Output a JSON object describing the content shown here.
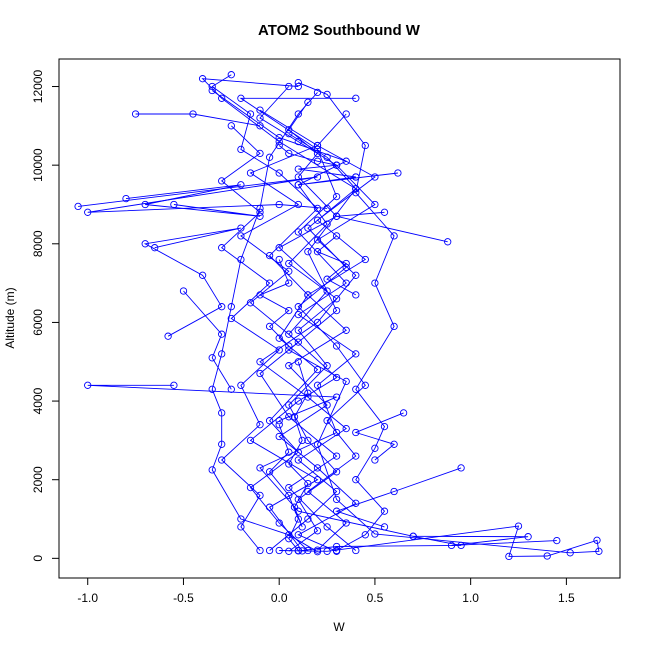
{
  "chart_data": {
    "type": "line",
    "title": "ATOM2 Southbound W",
    "xlabel": "W",
    "ylabel": "Altitude (m)",
    "xlim": [
      -1.15,
      1.78
    ],
    "ylim": [
      -500,
      12700
    ],
    "xticks": [
      "-1.0",
      "-0.5",
      "0.0",
      "0.5",
      "1.0",
      "1.5"
    ],
    "xtick_values": [
      -1.0,
      -0.5,
      0.0,
      0.5,
      1.0,
      1.5
    ],
    "yticks": [
      "0",
      "2000",
      "4000",
      "6000",
      "8000",
      "10000",
      "12000"
    ],
    "ytick_values": [
      0,
      2000,
      4000,
      6000,
      8000,
      10000,
      12000
    ],
    "marker": "open-circle",
    "color": "#0000ff",
    "grid": false,
    "series": [
      {
        "points": [
          [
            0.0,
            200
          ],
          [
            0.25,
            180
          ],
          [
            1.25,
            820
          ],
          [
            1.2,
            50
          ],
          [
            1.4,
            60
          ],
          [
            1.66,
            460
          ],
          [
            1.67,
            180
          ],
          [
            1.52,
            140
          ],
          [
            0.5,
            620
          ],
          [
            0.3,
            1500
          ],
          [
            0.2,
            2900
          ],
          [
            0.35,
            4500
          ],
          [
            0.05,
            5300
          ],
          [
            0.3,
            6300
          ],
          [
            0.15,
            7800
          ],
          [
            0.4,
            9400
          ],
          [
            0.0,
            10600
          ],
          [
            -0.3,
            11700
          ],
          [
            -0.4,
            12200
          ],
          [
            0.1,
            12000
          ]
        ]
      },
      {
        "points": [
          [
            0.1,
            190
          ],
          [
            0.3,
            300
          ],
          [
            0.95,
            330
          ],
          [
            0.7,
            560
          ],
          [
            0.1,
            1200
          ],
          [
            -0.1,
            2300
          ],
          [
            0.3,
            3200
          ],
          [
            0.2,
            4400
          ],
          [
            0.4,
            5200
          ],
          [
            0.1,
            6200
          ],
          [
            0.35,
            7000
          ],
          [
            0.1,
            8300
          ],
          [
            0.3,
            9200
          ],
          [
            0.2,
            10400
          ],
          [
            -0.2,
            11700
          ],
          [
            0.4,
            11700
          ]
        ]
      },
      {
        "points": [
          [
            0.2,
            170
          ],
          [
            0.05,
            600
          ],
          [
            -0.2,
            1000
          ],
          [
            -0.35,
            2250
          ],
          [
            -0.3,
            2900
          ],
          [
            -0.3,
            3700
          ],
          [
            -0.35,
            4300
          ],
          [
            -0.3,
            5200
          ],
          [
            -0.25,
            6400
          ],
          [
            -0.2,
            7600
          ],
          [
            -0.1,
            8900
          ],
          [
            -0.05,
            10200
          ],
          [
            0.1,
            11300
          ],
          [
            0.2,
            11850
          ]
        ]
      },
      {
        "points": [
          [
            0.3,
            200
          ],
          [
            0.45,
            600
          ],
          [
            0.55,
            1200
          ],
          [
            0.4,
            2000
          ],
          [
            0.5,
            2800
          ],
          [
            0.55,
            3350
          ],
          [
            0.4,
            4300
          ],
          [
            0.6,
            5900
          ],
          [
            0.5,
            7000
          ],
          [
            0.6,
            8200
          ],
          [
            0.4,
            9300
          ],
          [
            0.45,
            10500
          ],
          [
            0.25,
            11800
          ],
          [
            0.1,
            12100
          ]
        ]
      },
      {
        "points": [
          [
            0.15,
            200
          ],
          [
            0.0,
            900
          ],
          [
            -0.15,
            1800
          ],
          [
            0.1,
            2700
          ],
          [
            -0.05,
            3500
          ],
          [
            0.2,
            4800
          ],
          [
            0.0,
            5600
          ],
          [
            0.15,
            6700
          ],
          [
            -0.05,
            7700
          ],
          [
            0.2,
            8900
          ],
          [
            0.0,
            9800
          ],
          [
            -0.2,
            10400
          ],
          [
            -0.15,
            11300
          ],
          [
            -0.35,
            12000
          ],
          [
            -0.25,
            12300
          ]
        ]
      },
      {
        "points": [
          [
            0.05,
            180
          ],
          [
            0.2,
            700
          ],
          [
            0.1,
            1500
          ],
          [
            0.3,
            2200
          ],
          [
            0.15,
            3000
          ],
          [
            0.05,
            3900
          ],
          [
            0.25,
            4900
          ],
          [
            0.1,
            5800
          ],
          [
            0.3,
            6600
          ],
          [
            0.05,
            7500
          ],
          [
            0.25,
            8500
          ],
          [
            0.1,
            9500
          ],
          [
            0.35,
            10100
          ],
          [
            0.0,
            10700
          ],
          [
            -0.35,
            11900
          ]
        ]
      },
      {
        "points": [
          [
            -0.05,
            200
          ],
          [
            0.15,
            1000
          ],
          [
            0.3,
            1700
          ],
          [
            0.1,
            2500
          ],
          [
            0.35,
            3300
          ],
          [
            0.15,
            4100
          ],
          [
            -0.1,
            5000
          ],
          [
            0.2,
            6000
          ],
          [
            0.4,
            7200
          ],
          [
            0.2,
            8100
          ],
          [
            0.5,
            9000
          ],
          [
            0.3,
            10000
          ],
          [
            0.1,
            10600
          ],
          [
            -0.1,
            11200
          ],
          [
            0.05,
            12000
          ]
        ]
      },
      {
        "points": [
          [
            0.4,
            200
          ],
          [
            0.25,
            800
          ],
          [
            0.05,
            1800
          ],
          [
            0.3,
            2600
          ],
          [
            0.05,
            3600
          ],
          [
            -0.1,
            4700
          ],
          [
            0.1,
            5500
          ],
          [
            -0.15,
            6500
          ],
          [
            0.05,
            7300
          ],
          [
            -0.2,
            8200
          ],
          [
            0.1,
            9000
          ],
          [
            -0.15,
            9800
          ],
          [
            0.2,
            10500
          ],
          [
            0.35,
            11300
          ]
        ]
      },
      {
        "points": [
          [
            0.12,
            190
          ],
          [
            -0.05,
            1300
          ],
          [
            0.2,
            2000
          ],
          [
            -0.15,
            3000
          ],
          [
            0.1,
            4000
          ],
          [
            0.3,
            4600
          ],
          [
            0.05,
            5700
          ],
          [
            0.25,
            6800
          ],
          [
            0.0,
            7900
          ],
          [
            0.3,
            8700
          ],
          [
            0.1,
            9700
          ],
          [
            0.2,
            10300
          ],
          [
            0.05,
            10900
          ],
          [
            0.15,
            11600
          ]
        ]
      },
      {
        "points": [
          [
            0.3,
            180
          ],
          [
            0.1,
            600
          ],
          [
            0.4,
            1400
          ],
          [
            0.2,
            2300
          ],
          [
            0.0,
            3100
          ],
          [
            0.25,
            3900
          ],
          [
            0.05,
            4900
          ],
          [
            0.35,
            5800
          ],
          [
            0.15,
            6700
          ],
          [
            0.45,
            7600
          ],
          [
            0.2,
            8600
          ],
          [
            0.5,
            9700
          ],
          [
            0.2,
            10500
          ],
          [
            -0.1,
            11400
          ]
        ]
      },
      {
        "points": [
          [
            -0.1,
            200
          ],
          [
            -0.2,
            800
          ],
          [
            -0.1,
            1600
          ],
          [
            -0.3,
            2500
          ],
          [
            -0.1,
            3400
          ],
          [
            -0.2,
            4400
          ],
          [
            0.0,
            5300
          ],
          [
            -0.25,
            6100
          ],
          [
            -0.05,
            7000
          ],
          [
            -0.3,
            7900
          ],
          [
            -0.1,
            8800
          ],
          [
            -0.3,
            9600
          ],
          [
            -0.1,
            10300
          ],
          [
            -0.25,
            11000
          ]
        ]
      },
      {
        "points": [
          [
            0.2,
            210
          ],
          [
            0.35,
            900
          ],
          [
            0.15,
            1700
          ],
          [
            0.4,
            2600
          ],
          [
            0.25,
            3500
          ],
          [
            0.45,
            4400
          ],
          [
            0.3,
            5400
          ],
          [
            0.1,
            6400
          ],
          [
            0.35,
            7400
          ],
          [
            0.15,
            8400
          ],
          [
            0.4,
            9400
          ],
          [
            0.25,
            10200
          ],
          [
            0.05,
            10800
          ]
        ]
      },
      {
        "points": [
          [
            -0.55,
            4400
          ],
          [
            -1.0,
            4400
          ],
          [
            0.3,
            4100
          ],
          [
            0.0,
            3500
          ]
        ]
      },
      {
        "points": [
          [
            -1.05,
            8950
          ],
          [
            0.2,
            9700
          ],
          [
            -1.0,
            8800
          ],
          [
            0.0,
            9000
          ],
          [
            0.25,
            8900
          ]
        ]
      },
      {
        "points": [
          [
            -0.75,
            11300
          ],
          [
            -0.45,
            11300
          ],
          [
            -0.1,
            11000
          ]
        ]
      },
      {
        "points": [
          [
            0.88,
            8050
          ],
          [
            0.3,
            8700
          ],
          [
            0.55,
            8800
          ]
        ]
      },
      {
        "points": [
          [
            0.62,
            9800
          ],
          [
            0.1,
            9500
          ],
          [
            0.4,
            9700
          ]
        ]
      },
      {
        "points": [
          [
            -0.58,
            5650
          ],
          [
            -0.3,
            6400
          ],
          [
            -0.4,
            7200
          ],
          [
            -0.7,
            8000
          ],
          [
            -0.2,
            8400
          ],
          [
            -0.65,
            7900
          ]
        ]
      },
      {
        "points": [
          [
            -0.8,
            9150
          ],
          [
            -0.2,
            9500
          ],
          [
            -0.7,
            9000
          ],
          [
            -0.1,
            8700
          ],
          [
            -0.55,
            9000
          ]
        ]
      },
      {
        "points": [
          [
            0.95,
            2300
          ],
          [
            0.6,
            1700
          ],
          [
            0.3,
            1200
          ],
          [
            0.55,
            800
          ]
        ]
      },
      {
        "points": [
          [
            1.45,
            450
          ],
          [
            0.9,
            330
          ],
          [
            1.3,
            550
          ],
          [
            0.7,
            560
          ]
        ]
      },
      {
        "points": [
          [
            0.65,
            3700
          ],
          [
            0.4,
            3200
          ],
          [
            0.6,
            2900
          ],
          [
            0.5,
            2500
          ]
        ]
      },
      {
        "points": [
          [
            -0.5,
            6800
          ],
          [
            -0.3,
            5700
          ],
          [
            -0.35,
            5100
          ],
          [
            -0.25,
            4300
          ]
        ]
      },
      {
        "points": [
          [
            0.0,
            3400
          ],
          [
            0.05,
            2700
          ],
          [
            -0.05,
            2200
          ],
          [
            0.05,
            1600
          ],
          [
            0.1,
            1000
          ],
          [
            0.05,
            500
          ],
          [
            0.1,
            200
          ]
        ]
      },
      {
        "points": [
          [
            0.1,
            5000
          ],
          [
            0.15,
            4200
          ],
          [
            0.08,
            3600
          ],
          [
            0.12,
            3000
          ],
          [
            0.05,
            2400
          ],
          [
            0.15,
            1900
          ],
          [
            0.08,
            1300
          ],
          [
            0.12,
            800
          ]
        ]
      },
      {
        "points": [
          [
            0.0,
            10500
          ],
          [
            0.05,
            10300
          ],
          [
            0.2,
            10100
          ],
          [
            0.3,
            10000
          ],
          [
            0.1,
            9900
          ],
          [
            0.4,
            9700
          ]
        ]
      },
      {
        "points": [
          [
            0.0,
            7600
          ],
          [
            0.05,
            7000
          ],
          [
            -0.1,
            6700
          ],
          [
            0.05,
            6300
          ],
          [
            -0.05,
            5900
          ],
          [
            0.05,
            5400
          ]
        ]
      },
      {
        "points": [
          [
            0.3,
            8200
          ],
          [
            0.2,
            7800
          ],
          [
            0.35,
            7500
          ],
          [
            0.25,
            7100
          ],
          [
            0.4,
            6700
          ]
        ]
      }
    ]
  }
}
